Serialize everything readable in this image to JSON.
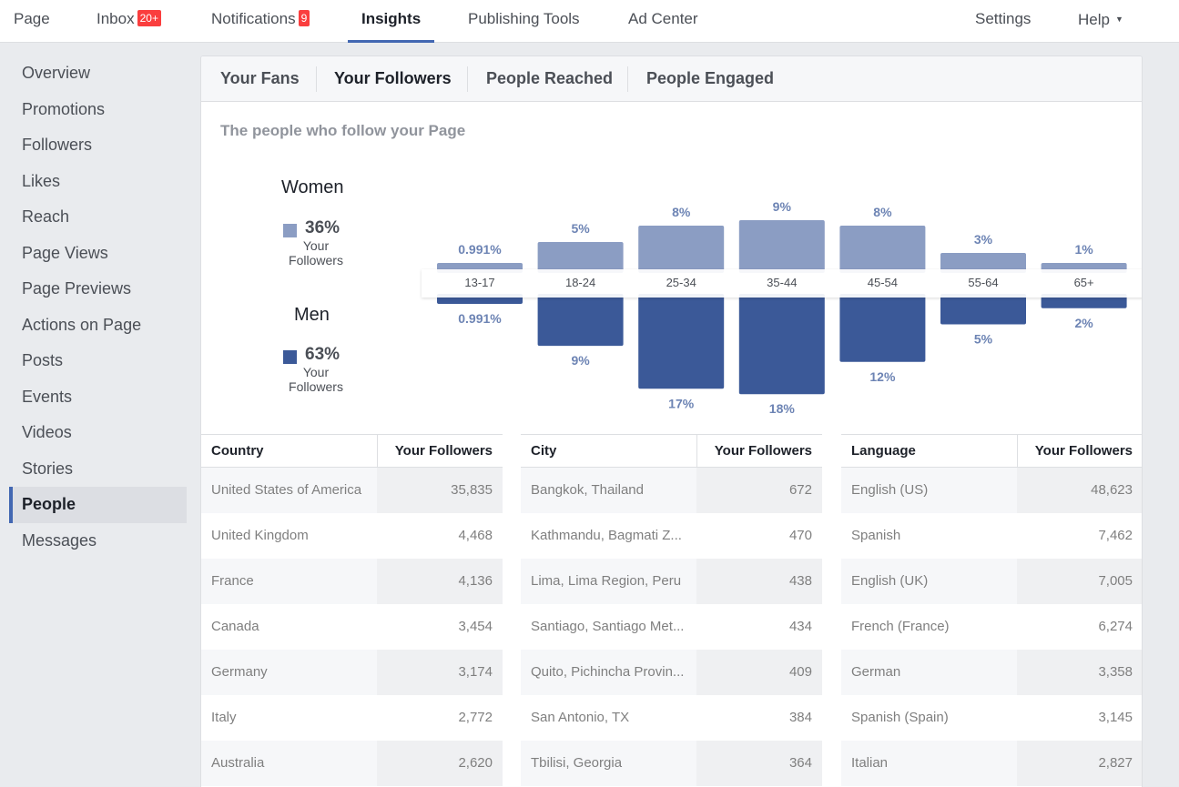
{
  "topnav": {
    "items": [
      {
        "label": "Page",
        "badge": ""
      },
      {
        "label": "Inbox",
        "badge": "20+"
      },
      {
        "label": "Notifications",
        "badge": "9"
      },
      {
        "label": "Insights",
        "badge": ""
      },
      {
        "label": "Publishing Tools",
        "badge": ""
      },
      {
        "label": "Ad Center",
        "badge": ""
      },
      {
        "label": "Settings",
        "badge": ""
      },
      {
        "label": "Help",
        "badge": ""
      }
    ],
    "active": "Insights"
  },
  "sidebar": {
    "items": [
      "Overview",
      "Promotions",
      "Followers",
      "Likes",
      "Reach",
      "Page Views",
      "Page Previews",
      "Actions on Page",
      "Posts",
      "Events",
      "Videos",
      "Stories",
      "People",
      "Messages"
    ],
    "active": "People"
  },
  "tabs": {
    "items": [
      "Your Fans",
      "Your Followers",
      "People Reached",
      "People Engaged"
    ],
    "active": "Your Followers"
  },
  "section_title": "The people who follow your Page",
  "legend": {
    "women": {
      "label": "Women",
      "pct": "36%",
      "sub1": "Your",
      "sub2": "Followers",
      "color": "#8b9dc3"
    },
    "men": {
      "label": "Men",
      "pct": "63%",
      "sub1": "Your",
      "sub2": "Followers",
      "color": "#3b5998"
    }
  },
  "chart_data": {
    "type": "bar",
    "categories": [
      "13-17",
      "18-24",
      "25-34",
      "35-44",
      "45-54",
      "55-64",
      "65+"
    ],
    "series": [
      {
        "name": "Women",
        "values": [
          0.991,
          5,
          8,
          9,
          8,
          3,
          1
        ],
        "labels": [
          "0.991%",
          "5%",
          "8%",
          "9%",
          "8%",
          "3%",
          "1%"
        ],
        "color": "#8b9dc3"
      },
      {
        "name": "Men",
        "values": [
          0.991,
          9,
          17,
          18,
          12,
          5,
          2
        ],
        "labels": [
          "0.991%",
          "9%",
          "17%",
          "18%",
          "12%",
          "5%",
          "2%"
        ],
        "color": "#3b5998"
      }
    ],
    "layout": "mirrored"
  },
  "tables": [
    {
      "header": [
        "Country",
        "Your Followers"
      ],
      "rows": [
        [
          "United States of America",
          "35,835"
        ],
        [
          "United Kingdom",
          "4,468"
        ],
        [
          "France",
          "4,136"
        ],
        [
          "Canada",
          "3,454"
        ],
        [
          "Germany",
          "3,174"
        ],
        [
          "Italy",
          "2,772"
        ],
        [
          "Australia",
          "2,620"
        ]
      ]
    },
    {
      "header": [
        "City",
        "Your Followers"
      ],
      "rows": [
        [
          "Bangkok, Thailand",
          "672"
        ],
        [
          "Kathmandu, Bagmati Z...",
          "470"
        ],
        [
          "Lima, Lima Region, Peru",
          "438"
        ],
        [
          "Santiago, Santiago Met...",
          "434"
        ],
        [
          "Quito, Pichincha Provin...",
          "409"
        ],
        [
          "San Antonio, TX",
          "384"
        ],
        [
          "Tbilisi, Georgia",
          "364"
        ]
      ]
    },
    {
      "header": [
        "Language",
        "Your Followers"
      ],
      "rows": [
        [
          "English (US)",
          "48,623"
        ],
        [
          "Spanish",
          "7,462"
        ],
        [
          "English (UK)",
          "7,005"
        ],
        [
          "French (France)",
          "6,274"
        ],
        [
          "German",
          "3,358"
        ],
        [
          "Spanish (Spain)",
          "3,145"
        ],
        [
          "Italian",
          "2,827"
        ]
      ]
    }
  ]
}
